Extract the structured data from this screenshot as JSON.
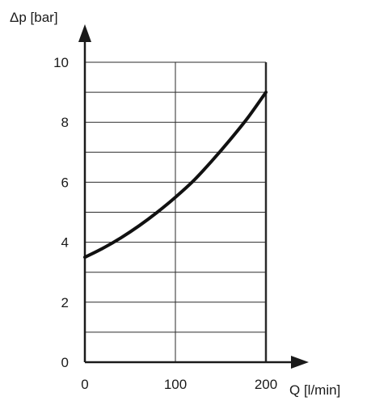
{
  "chart_data": {
    "type": "line",
    "title": "",
    "xlabel": "Q [l/min]",
    "ylabel": "Δp [bar]",
    "xlim": [
      0,
      200
    ],
    "ylim": [
      0,
      10
    ],
    "x_ticks": [
      "0",
      "100",
      "200"
    ],
    "y_ticks": [
      "0",
      "2",
      "4",
      "6",
      "8",
      "10"
    ],
    "grid": true,
    "x_grid_step": 100,
    "y_grid_step": 1,
    "series": [
      {
        "x": [
          0,
          20,
          40,
          60,
          80,
          100,
          120,
          140,
          160,
          180,
          200
        ],
        "values": [
          3.5,
          3.8,
          4.15,
          4.55,
          5.0,
          5.5,
          6.05,
          6.7,
          7.4,
          8.15,
          9.0
        ]
      }
    ]
  }
}
